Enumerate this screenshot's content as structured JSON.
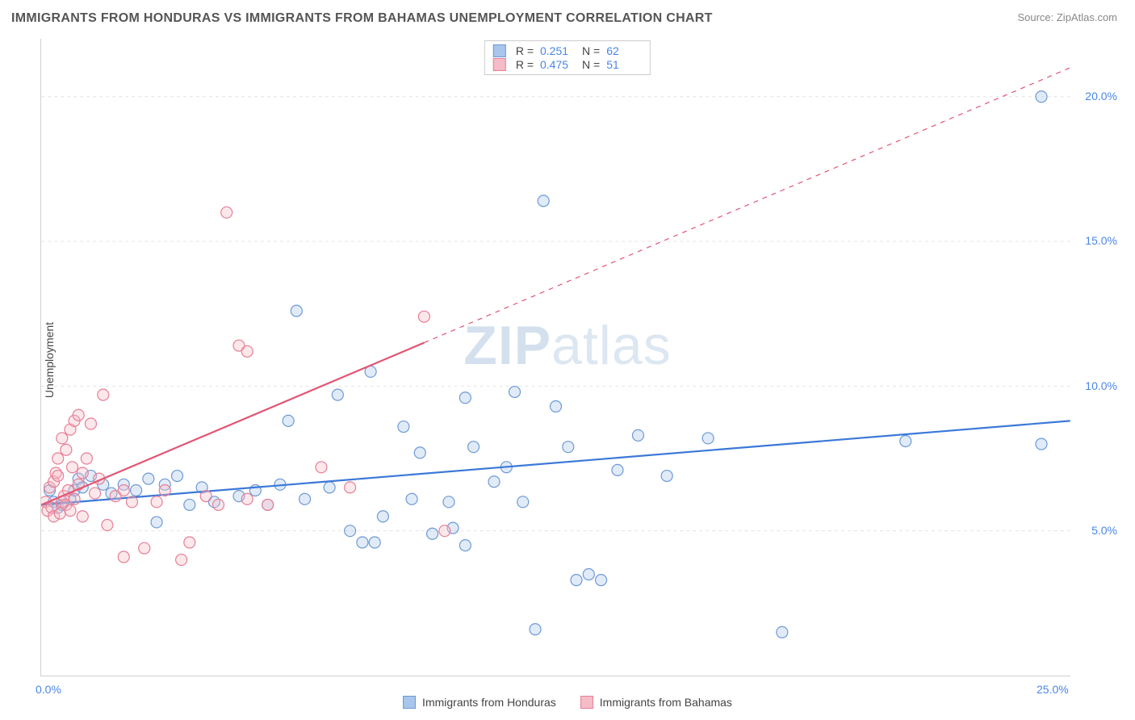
{
  "title": "IMMIGRANTS FROM HONDURAS VS IMMIGRANTS FROM BAHAMAS UNEMPLOYMENT CORRELATION CHART",
  "source": "Source: ZipAtlas.com",
  "watermark_bold": "ZIP",
  "watermark_rest": "atlas",
  "y_axis_label": "Unemployment",
  "chart": {
    "type": "scatter",
    "xlim": [
      0,
      25
    ],
    "ylim": [
      0,
      22
    ],
    "x_ticks": [
      {
        "v": 0,
        "label": "0.0%"
      },
      {
        "v": 25,
        "label": "25.0%"
      }
    ],
    "y_ticks": [
      {
        "v": 5,
        "label": "5.0%"
      },
      {
        "v": 10,
        "label": "10.0%"
      },
      {
        "v": 15,
        "label": "15.0%"
      },
      {
        "v": 20,
        "label": "20.0%"
      }
    ],
    "gridline_color": "#e4e4e4",
    "gridline_dash": "4,4",
    "background_color": "#ffffff",
    "marker_radius": 7,
    "marker_stroke_width": 1.2,
    "marker_fill_opacity": 0.35,
    "series": [
      {
        "name": "Immigrants from Honduras",
        "color_fill": "#a8c5ec",
        "color_stroke": "#6d9ad6",
        "trend": {
          "x1": 0,
          "y1": 5.9,
          "x2": 25,
          "y2": 8.8,
          "dash": "none",
          "width": 2.2,
          "color": "#3b78d8",
          "extend_dash_to_x": null
        },
        "points": [
          [
            0.2,
            6.4
          ],
          [
            0.3,
            6.0
          ],
          [
            0.4,
            5.8
          ],
          [
            0.5,
            5.9
          ],
          [
            0.7,
            6.1
          ],
          [
            0.8,
            6.4
          ],
          [
            0.9,
            6.8
          ],
          [
            1.0,
            6.5
          ],
          [
            1.2,
            6.9
          ],
          [
            1.5,
            6.6
          ],
          [
            1.7,
            6.3
          ],
          [
            2.0,
            6.6
          ],
          [
            2.3,
            6.4
          ],
          [
            2.6,
            6.8
          ],
          [
            2.8,
            5.3
          ],
          [
            3.0,
            6.6
          ],
          [
            3.3,
            6.9
          ],
          [
            3.6,
            5.9
          ],
          [
            3.9,
            6.5
          ],
          [
            4.2,
            6.0
          ],
          [
            4.8,
            6.2
          ],
          [
            5.2,
            6.4
          ],
          [
            5.5,
            5.9
          ],
          [
            5.8,
            6.6
          ],
          [
            6.0,
            8.8
          ],
          [
            6.4,
            6.1
          ],
          [
            6.2,
            12.6
          ],
          [
            7.0,
            6.5
          ],
          [
            7.2,
            9.7
          ],
          [
            7.5,
            5.0
          ],
          [
            7.8,
            4.6
          ],
          [
            8.0,
            10.5
          ],
          [
            8.3,
            5.5
          ],
          [
            8.1,
            4.6
          ],
          [
            8.8,
            8.6
          ],
          [
            9.0,
            6.1
          ],
          [
            9.2,
            7.7
          ],
          [
            9.5,
            4.9
          ],
          [
            9.9,
            6.0
          ],
          [
            10.0,
            5.1
          ],
          [
            10.3,
            9.6
          ],
          [
            10.5,
            7.9
          ],
          [
            11.0,
            6.7
          ],
          [
            11.3,
            7.2
          ],
          [
            11.5,
            9.8
          ],
          [
            11.7,
            6.0
          ],
          [
            12.2,
            16.4
          ],
          [
            12.5,
            9.3
          ],
          [
            12.8,
            7.9
          ],
          [
            13.0,
            3.3
          ],
          [
            13.3,
            3.5
          ],
          [
            14.0,
            7.1
          ],
          [
            14.5,
            8.3
          ],
          [
            15.2,
            6.9
          ],
          [
            16.2,
            8.2
          ],
          [
            10.3,
            4.5
          ],
          [
            12.0,
            1.6
          ],
          [
            13.6,
            3.3
          ],
          [
            21.0,
            8.1
          ],
          [
            24.3,
            8.0
          ],
          [
            24.3,
            20.0
          ],
          [
            18.0,
            1.5
          ]
        ]
      },
      {
        "name": "Immigrants from Bahamas",
        "color_fill": "#f5bcc7",
        "color_stroke": "#e77e96",
        "trend": {
          "x1": 0,
          "y1": 5.9,
          "x2": 9.3,
          "y2": 11.5,
          "dash": "none",
          "width": 2.2,
          "color": "#e25573",
          "extend_dash_to_x": 25,
          "extend_y": 21.0,
          "dash_pattern": "6,6",
          "dash_width": 1.2
        },
        "points": [
          [
            0.1,
            6.0
          ],
          [
            0.15,
            5.7
          ],
          [
            0.2,
            6.5
          ],
          [
            0.25,
            5.8
          ],
          [
            0.3,
            6.7
          ],
          [
            0.3,
            5.5
          ],
          [
            0.35,
            7.0
          ],
          [
            0.4,
            6.9
          ],
          [
            0.4,
            7.5
          ],
          [
            0.45,
            5.6
          ],
          [
            0.5,
            6.0
          ],
          [
            0.5,
            8.2
          ],
          [
            0.55,
            6.2
          ],
          [
            0.6,
            7.8
          ],
          [
            0.6,
            5.9
          ],
          [
            0.65,
            6.4
          ],
          [
            0.7,
            8.5
          ],
          [
            0.7,
            5.7
          ],
          [
            0.75,
            7.2
          ],
          [
            0.8,
            8.8
          ],
          [
            0.8,
            6.1
          ],
          [
            0.9,
            6.6
          ],
          [
            0.9,
            9.0
          ],
          [
            1.0,
            7.0
          ],
          [
            1.0,
            5.5
          ],
          [
            1.1,
            7.5
          ],
          [
            1.2,
            8.7
          ],
          [
            1.3,
            6.3
          ],
          [
            1.4,
            6.8
          ],
          [
            1.5,
            9.7
          ],
          [
            1.6,
            5.2
          ],
          [
            1.8,
            6.2
          ],
          [
            2.0,
            4.1
          ],
          [
            2.0,
            6.4
          ],
          [
            2.2,
            6.0
          ],
          [
            2.5,
            4.4
          ],
          [
            2.8,
            6.0
          ],
          [
            3.0,
            6.4
          ],
          [
            3.4,
            4.0
          ],
          [
            3.6,
            4.6
          ],
          [
            4.0,
            6.2
          ],
          [
            4.3,
            5.9
          ],
          [
            4.5,
            16.0
          ],
          [
            4.8,
            11.4
          ],
          [
            5.0,
            11.2
          ],
          [
            5.0,
            6.1
          ],
          [
            5.5,
            5.9
          ],
          [
            6.8,
            7.2
          ],
          [
            7.5,
            6.5
          ],
          [
            9.3,
            12.4
          ],
          [
            9.8,
            5.0
          ]
        ]
      }
    ]
  },
  "stats": [
    {
      "series_idx": 0,
      "R": "0.251",
      "N": "62"
    },
    {
      "series_idx": 1,
      "R": "0.475",
      "N": "51"
    }
  ],
  "r_label": "R  =",
  "n_label": "N  ="
}
